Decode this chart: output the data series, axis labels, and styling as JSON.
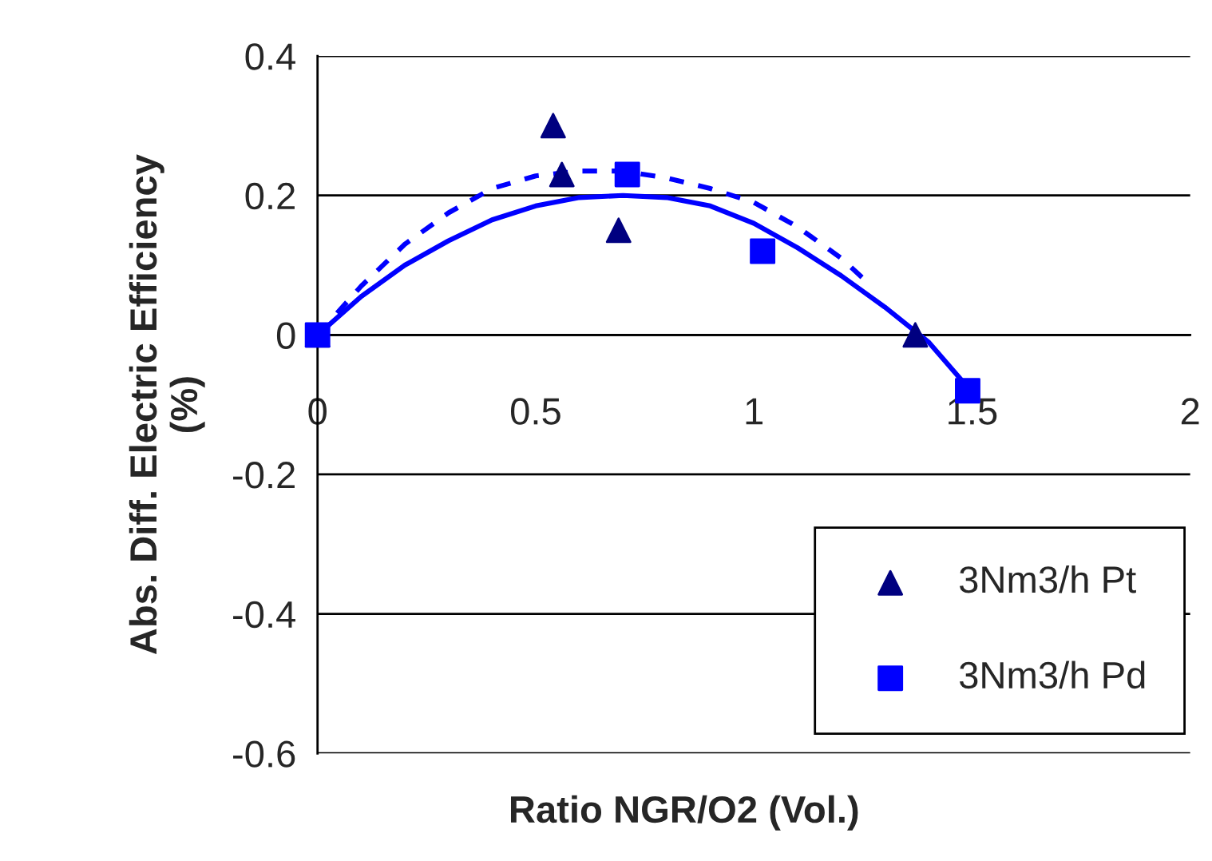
{
  "chart_data": {
    "type": "scatter",
    "xlabel": "Ratio NGR/O2 (Vol.)",
    "ylabel": "Abs. Diff. Electric Efficiency\n(%)",
    "xlim": [
      0,
      2
    ],
    "xticks": [
      0,
      0.5,
      1,
      1.5,
      2
    ],
    "ylim": [
      -0.6,
      0.4
    ],
    "yticks": [
      -0.6,
      -0.4,
      -0.2,
      0,
      0.2,
      0.4
    ],
    "grid": "y",
    "legend": "bottom right",
    "series": [
      {
        "name": "3Nm3/h Pt",
        "marker": "triangle",
        "color": "#000080",
        "x": [
          0,
          0.54,
          0.56,
          0.69,
          1.37
        ],
        "values": [
          0,
          0.3,
          0.23,
          0.15,
          0
        ]
      },
      {
        "name": "3Nm3/h Pd",
        "marker": "square",
        "color": "#0000ff",
        "x": [
          0,
          0.71,
          1.02,
          1.49
        ],
        "values": [
          0,
          0.23,
          0.12,
          -0.08
        ]
      },
      {
        "type": "line",
        "line_style": "solid",
        "color": "#0000ff",
        "x": [
          0,
          0.1,
          0.2,
          0.3,
          0.4,
          0.5,
          0.6,
          0.7,
          0.8,
          0.9,
          1.0,
          1.1,
          1.2,
          1.3,
          1.4,
          1.49
        ],
        "values": [
          0,
          0.055,
          0.1,
          0.135,
          0.165,
          0.185,
          0.197,
          0.2,
          0.197,
          0.185,
          0.16,
          0.125,
          0.085,
          0.04,
          -0.01,
          -0.075
        ]
      },
      {
        "type": "line",
        "line_style": "dashed",
        "color": "#0000ff",
        "x": [
          0,
          0.1,
          0.2,
          0.3,
          0.4,
          0.5,
          0.6,
          0.7,
          0.8,
          0.9,
          1.0,
          1.1,
          1.2,
          1.27
        ],
        "values": [
          0,
          0.07,
          0.13,
          0.175,
          0.21,
          0.228,
          0.235,
          0.235,
          0.225,
          0.21,
          0.19,
          0.155,
          0.11,
          0.07
        ]
      }
    ]
  }
}
